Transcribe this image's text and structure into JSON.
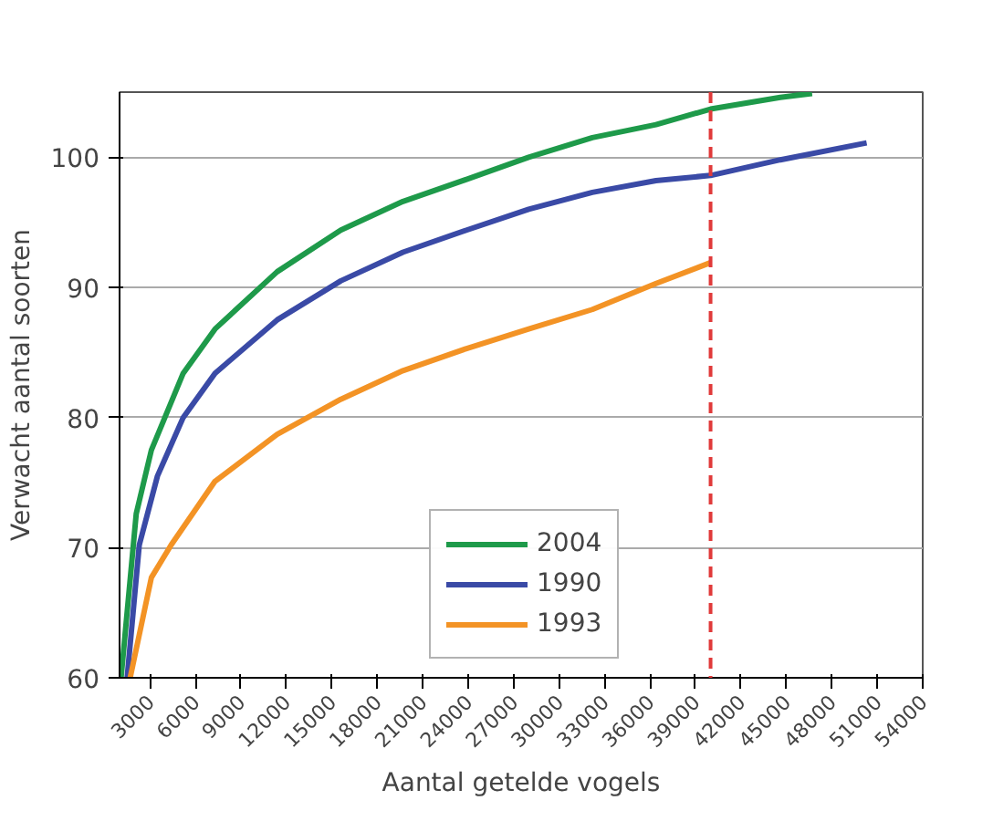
{
  "chart_data": {
    "type": "line",
    "xlabel": "Aantal getelde vogels",
    "ylabel": "Verwacht aantal soorten",
    "xlim": [
      1000,
      54000
    ],
    "ylim": [
      60,
      105
    ],
    "xticks": [
      3000,
      6000,
      9000,
      12000,
      15000,
      18000,
      21000,
      24000,
      27000,
      30000,
      33000,
      36000,
      39000,
      42000,
      45000,
      48000,
      51000,
      54000
    ],
    "yticks": [
      60,
      70,
      80,
      90,
      100
    ],
    "grid": "y",
    "legend": "bottom",
    "line_style": "solid",
    "ref_lines": [
      {
        "axis": "x",
        "value": 40000,
        "color": "#e03a3a",
        "line_style": "dashed"
      }
    ],
    "series": [
      {
        "name": "2004",
        "color": "#1e9a4a",
        "x": [
          1100,
          2100,
          3100,
          5200,
          7300,
          11400,
          15600,
          19700,
          23900,
          28000,
          32200,
          36400,
          40000,
          44600,
          46700
        ],
        "values": [
          60,
          72.6,
          77.5,
          83.4,
          86.8,
          91.2,
          94.4,
          96.6,
          98.3,
          100,
          101.5,
          102.5,
          103.7,
          104.6,
          104.9
        ]
      },
      {
        "name": "1990",
        "color": "#3a4aa6",
        "x": [
          1500,
          2300,
          3500,
          5200,
          7300,
          11400,
          15600,
          19700,
          23900,
          28000,
          32200,
          36400,
          40000,
          44600,
          50300
        ],
        "values": [
          60,
          70.2,
          75.5,
          80,
          83.4,
          87.5,
          90.5,
          92.7,
          94.4,
          96,
          97.3,
          98.2,
          98.6,
          99.8,
          101.1
        ]
      },
      {
        "name": "1993",
        "color": "#f39325",
        "x": [
          1700,
          3100,
          4400,
          7300,
          11400,
          15600,
          19700,
          23900,
          28000,
          32200,
          36400,
          40000
        ],
        "values": [
          60,
          67.7,
          70.2,
          75.1,
          78.7,
          81.4,
          83.6,
          85.3,
          86.8,
          88.3,
          90.3,
          91.9
        ]
      }
    ]
  }
}
